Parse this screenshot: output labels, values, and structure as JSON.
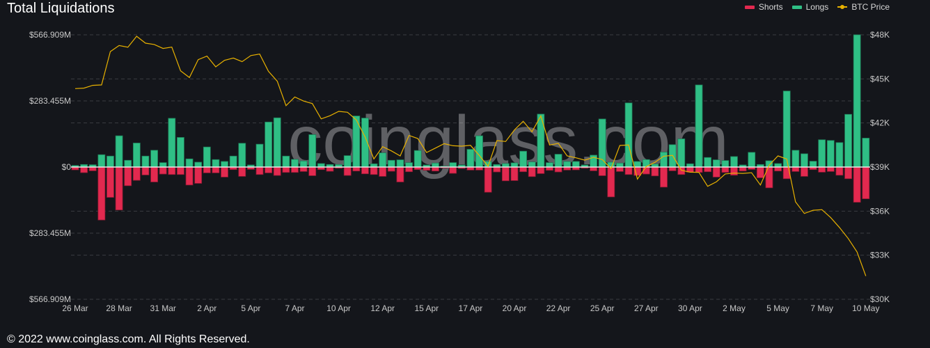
{
  "header": {
    "title": "Total Liquidations"
  },
  "legend": [
    {
      "label": "Shorts",
      "color": "#e2294f",
      "kind": "bar"
    },
    {
      "label": "Longs",
      "color": "#2fbf85",
      "kind": "bar"
    },
    {
      "label": "BTC Price",
      "color": "#e8b100",
      "kind": "line"
    }
  ],
  "watermark": "coinglass.com",
  "footer": "© 2022 www.coinglass.com. All Rights Reserved.",
  "chart_data": {
    "type": "bar",
    "title": "Total Liquidations",
    "x_tick_labels": [
      "26 Mar",
      "28 Mar",
      "31 Mar",
      "2 Apr",
      "5 Apr",
      "7 Apr",
      "10 Apr",
      "12 Apr",
      "15 Apr",
      "17 Apr",
      "20 Apr",
      "22 Apr",
      "25 Apr",
      "27 Apr",
      "30 Apr",
      "2 May",
      "5 May",
      "7 May",
      "10 May"
    ],
    "x_tick_every_n_bars": 5,
    "left_axis": {
      "ticks": [
        "$566.909M",
        "$283.455M",
        "$0",
        "$283.455M",
        "$566.909M"
      ],
      "range_musd": [
        -566.909,
        566.909
      ]
    },
    "right_axis": {
      "ticks": [
        "$48K",
        "$45K",
        "$42K",
        "$39K",
        "$36K",
        "$33K",
        "$30K"
      ],
      "range_kusd": [
        30,
        48
      ]
    },
    "grid": "horizontal dashed",
    "legend_position": "top-right",
    "series": [
      {
        "name": "Longs",
        "axis": "left",
        "unit": "M USD",
        "values": [
          7,
          11,
          10,
          53,
          47,
          134,
          29,
          103,
          47,
          72,
          19,
          209,
          127,
          35,
          21,
          86,
          32,
          24,
          47,
          102,
          9,
          98,
          193,
          211,
          47,
          33,
          26,
          139,
          15,
          11,
          11,
          49,
          219,
          210,
          14,
          61,
          29,
          31,
          19,
          71,
          9,
          17,
          4,
          19,
          9,
          76,
          134,
          24,
          11,
          15,
          18,
          68,
          22,
          227,
          19,
          55,
          24,
          24,
          9,
          51,
          206,
          21,
          17,
          275,
          24,
          32,
          13,
          64,
          96,
          121,
          14,
          352,
          41,
          31,
          28,
          45,
          9,
          63,
          11,
          27,
          15,
          326,
          72,
          57,
          25,
          117,
          114,
          105,
          226,
          567,
          124
        ]
      },
      {
        "name": "Shorts",
        "axis": "left",
        "unit": "M USD",
        "values": [
          12,
          24,
          16,
          227,
          130,
          184,
          80,
          57,
          34,
          64,
          30,
          32,
          32,
          77,
          70,
          25,
          25,
          43,
          11,
          40,
          10,
          32,
          25,
          36,
          23,
          23,
          19,
          37,
          11,
          18,
          5,
          36,
          17,
          29,
          32,
          40,
          18,
          64,
          20,
          11,
          14,
          17,
          4,
          27,
          6,
          13,
          13,
          108,
          21,
          59,
          58,
          20,
          41,
          28,
          14,
          21,
          13,
          12,
          5,
          16,
          37,
          128,
          19,
          32,
          36,
          30,
          38,
          86,
          16,
          32,
          22,
          23,
          20,
          43,
          23,
          35,
          17,
          10,
          46,
          89,
          17,
          50,
          19,
          40,
          11,
          22,
          19,
          35,
          50,
          151,
          136
        ]
      },
      {
        "name": "BTC Price",
        "type": "line",
        "axis": "right",
        "unit": "K USD",
        "values": [
          44.34,
          44.37,
          44.56,
          44.59,
          46.86,
          47.27,
          47.15,
          47.9,
          47.43,
          47.34,
          47.07,
          47.16,
          45.55,
          45.09,
          46.31,
          46.55,
          45.82,
          46.26,
          46.42,
          46.17,
          46.59,
          46.69,
          45.52,
          44.84,
          43.18,
          43.77,
          43.49,
          43.32,
          42.28,
          42.49,
          42.79,
          42.73,
          42.21,
          41.05,
          39.55,
          40.39,
          40.1,
          39.76,
          41.15,
          40.94,
          39.99,
          40.29,
          40.59,
          40.45,
          40.42,
          40.48,
          39.79,
          39.05,
          40.8,
          40.74,
          41.53,
          42.11,
          41.4,
          42.47,
          40.5,
          40.61,
          39.76,
          39.63,
          39.47,
          39.66,
          39.51,
          38.89,
          40.47,
          40.5,
          38.18,
          39.03,
          39.32,
          39.74,
          39.79,
          38.78,
          38.65,
          38.64,
          37.69,
          38.0,
          38.53,
          38.59,
          38.57,
          38.61,
          37.78,
          39.13,
          39.76,
          39.55,
          36.63,
          35.84,
          36.06,
          36.1,
          35.56,
          34.89,
          34.13,
          33.22,
          31.58
        ]
      }
    ]
  }
}
